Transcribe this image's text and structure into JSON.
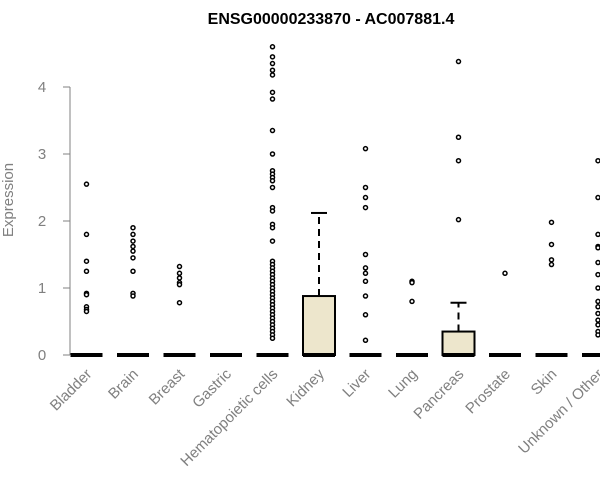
{
  "chart_data": {
    "type": "box",
    "title": "ENSG00000233870 - AC007881.4",
    "xlabel": "",
    "ylabel": "Expression",
    "ylim": [
      0,
      4.6
    ],
    "yticks": [
      0,
      1,
      2,
      3,
      4
    ],
    "grid": false,
    "categories": [
      "Bladder",
      "Brain",
      "Breast",
      "Gastric",
      "Hematopoietic cells",
      "Kidney",
      "Liver",
      "Lung",
      "Pancreas",
      "Prostate",
      "Skin",
      "Unknown / Other"
    ],
    "boxes": [
      {
        "q1": 0,
        "median": 0,
        "q3": 0,
        "whisker_low": 0,
        "whisker_high": 0,
        "outliers": [
          2.55,
          1.8,
          1.4,
          1.25,
          0.92,
          0.9,
          0.72,
          0.68,
          0.65
        ]
      },
      {
        "q1": 0,
        "median": 0,
        "q3": 0,
        "whisker_low": 0,
        "whisker_high": 0,
        "outliers": [
          1.9,
          1.8,
          1.7,
          1.62,
          1.55,
          1.45,
          1.25,
          0.92,
          0.88
        ]
      },
      {
        "q1": 0,
        "median": 0,
        "q3": 0,
        "whisker_low": 0,
        "whisker_high": 0,
        "outliers": [
          1.32,
          1.22,
          1.15,
          1.08,
          1.05,
          0.78
        ]
      },
      {
        "q1": 0,
        "median": 0,
        "q3": 0,
        "whisker_low": 0,
        "whisker_high": 0,
        "outliers": []
      },
      {
        "q1": 0,
        "median": 0,
        "q3": 0,
        "whisker_low": 0,
        "whisker_high": 0,
        "outliers": [
          4.6,
          4.45,
          4.35,
          4.25,
          4.18,
          3.92,
          3.82,
          3.35,
          3.0,
          2.75,
          2.7,
          2.65,
          2.6,
          2.5,
          2.2,
          2.15,
          1.95,
          1.9,
          1.7,
          1.4,
          1.35,
          1.3,
          1.25,
          1.2,
          1.15,
          1.1,
          1.05,
          1.0,
          0.95,
          0.9,
          0.85,
          0.8,
          0.75,
          0.7,
          0.65,
          0.6,
          0.55,
          0.5,
          0.45,
          0.4,
          0.35,
          0.3,
          0.25
        ]
      },
      {
        "q1": 0,
        "median": 0,
        "q3": 0.88,
        "whisker_low": 0,
        "whisker_high": 2.12,
        "outliers": []
      },
      {
        "q1": 0,
        "median": 0,
        "q3": 0,
        "whisker_low": 0,
        "whisker_high": 0,
        "outliers": [
          3.08,
          2.5,
          2.35,
          2.2,
          1.5,
          1.3,
          1.22,
          1.1,
          0.88,
          0.6,
          0.22
        ]
      },
      {
        "q1": 0,
        "median": 0,
        "q3": 0,
        "whisker_low": 0,
        "whisker_high": 0,
        "outliers": [
          1.1,
          1.08,
          0.8
        ]
      },
      {
        "q1": 0,
        "median": 0,
        "q3": 0.35,
        "whisker_low": 0,
        "whisker_high": 0.78,
        "outliers": [
          4.38,
          3.25,
          2.9,
          2.02
        ]
      },
      {
        "q1": 0,
        "median": 0,
        "q3": 0,
        "whisker_low": 0,
        "whisker_high": 0,
        "outliers": [
          1.22
        ]
      },
      {
        "q1": 0,
        "median": 0,
        "q3": 0,
        "whisker_low": 0,
        "whisker_high": 0,
        "outliers": [
          1.98,
          1.65,
          1.42,
          1.35
        ]
      },
      {
        "q1": 0,
        "median": 0,
        "q3": 0,
        "whisker_low": 0,
        "whisker_high": 0,
        "outliers": [
          2.9,
          2.35,
          1.8,
          1.62,
          1.6,
          1.38,
          1.2,
          1.0,
          0.8,
          0.72,
          0.62,
          0.52,
          0.45,
          0.35,
          0.3
        ]
      }
    ],
    "colors": {
      "box_fill": "#ede6cc",
      "stroke": "#000000",
      "axis": "#808080",
      "text": "#808080"
    }
  }
}
